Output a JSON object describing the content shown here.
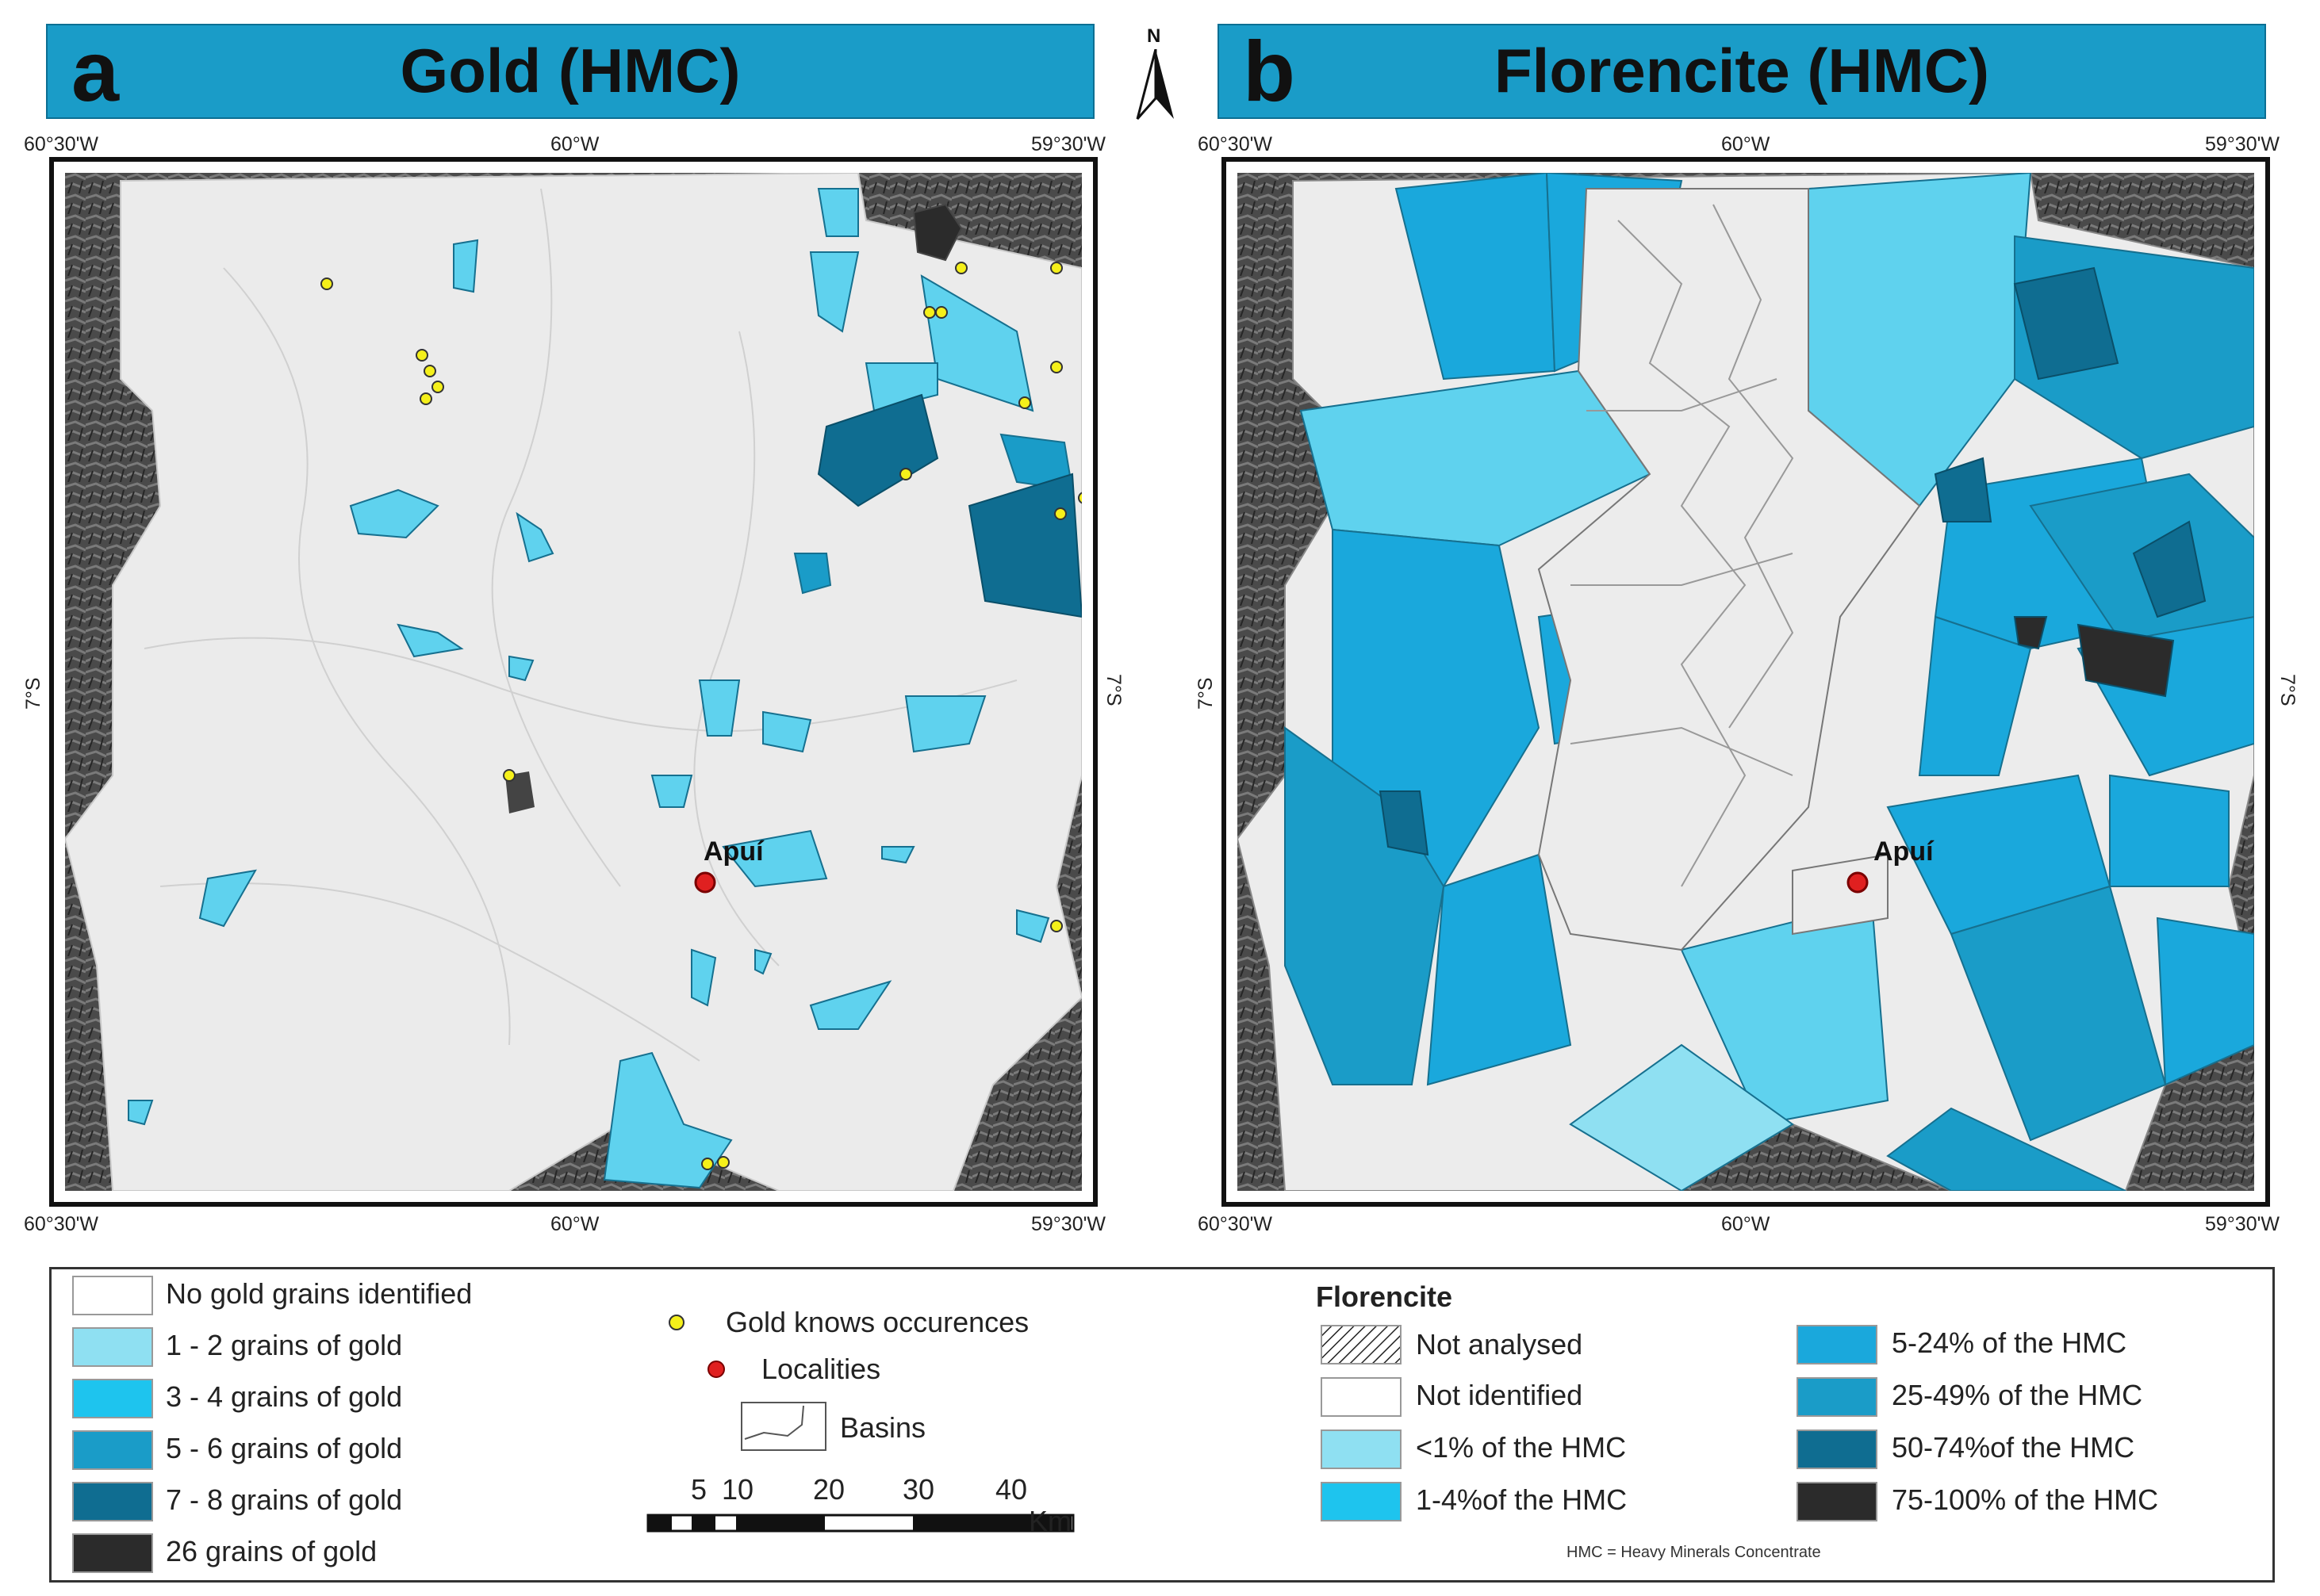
{
  "panels": {
    "a": {
      "letter": "a",
      "title": "Gold (HMC)"
    },
    "b": {
      "letter": "b",
      "title": "Florencite (HMC)"
    }
  },
  "north_arrow": "N",
  "coords": {
    "west": "60°30'W",
    "center": "60°W",
    "east": "59°30'W",
    "lat": "7°S"
  },
  "locality": "Apuí",
  "colors": {
    "banner": "#1a9cc8",
    "no_data": "#ebebeb",
    "class1": "#8fe0f2",
    "class2": "#1ec4ee",
    "class3": "#1a9cc8",
    "class4": "#0f6d91",
    "class5": "#2b2b2b",
    "occurrence": "#f5f01a",
    "locality": "#e02020"
  },
  "legend": {
    "gold": {
      "items": [
        {
          "label": "No gold grains identified",
          "color": "#ffffff"
        },
        {
          "label": "1 - 2 grains of gold",
          "color": "#8fe0f2"
        },
        {
          "label": "3 - 4 grains of gold",
          "color": "#1ec4ee"
        },
        {
          "label": "5 - 6 grains of gold",
          "color": "#1a9cc8"
        },
        {
          "label": "7 - 8 grains of gold",
          "color": "#0f6d91"
        },
        {
          "label": "26 grains of gold",
          "color": "#2b2b2b"
        }
      ]
    },
    "symbols": {
      "occurrences": "Gold knows occurences",
      "localities": "Localities",
      "basins": "Basins"
    },
    "scale": {
      "ticks": [
        "5",
        "10",
        "20",
        "30",
        "40"
      ],
      "unit": "Km"
    },
    "florencite": {
      "title": "Florencite",
      "items": [
        {
          "label": "Not analysed",
          "color": "hatch"
        },
        {
          "label": "Not identified",
          "color": "#ffffff"
        },
        {
          "label": "<1% of the HMC",
          "color": "#8fe0f2"
        },
        {
          "label": "1-4%of the HMC",
          "color": "#1ec4ee"
        },
        {
          "label": "5-24% of the HMC",
          "color": "#1aa8dc"
        },
        {
          "label": "25-49% of the HMC",
          "color": "#1a9cc8"
        },
        {
          "label": "50-74%of the HMC",
          "color": "#0f6d91"
        },
        {
          "label": "75-100% of the HMC",
          "color": "#2b2b2b"
        }
      ],
      "note": "HMC = Heavy Minerals Concentrate"
    }
  }
}
